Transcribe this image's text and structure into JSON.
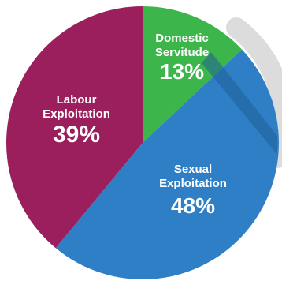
{
  "chart_data": {
    "type": "pie",
    "slices": [
      {
        "label_line1": "Domestic",
        "label_line2": "Servitude",
        "value": 13,
        "value_text": "13%",
        "color": "#3cb54a"
      },
      {
        "label_line1": "Sexual",
        "label_line2": "Exploitation",
        "value": 48,
        "value_text": "48%",
        "color": "#2f7fc6"
      },
      {
        "label_line1": "Labour",
        "label_line2": "Exploitation",
        "value": 39,
        "value_text": "39%",
        "color": "#9b1f5c"
      }
    ],
    "accent_ring_color": "#dcdcdc",
    "stripe_color": "#1f5e96"
  }
}
